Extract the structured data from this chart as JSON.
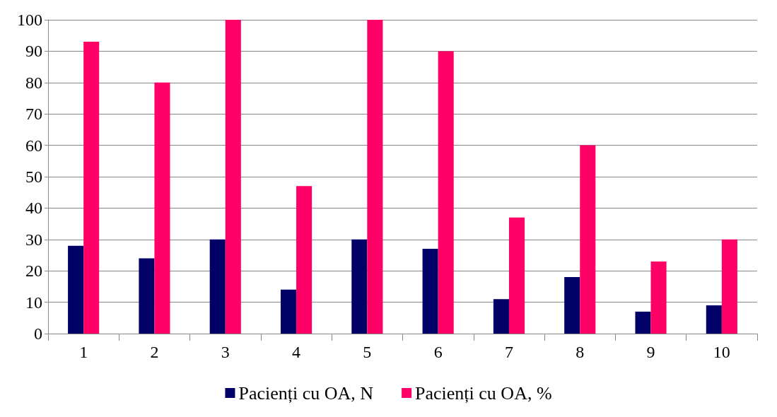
{
  "chart_data": {
    "type": "bar",
    "categories": [
      "1",
      "2",
      "3",
      "4",
      "5",
      "6",
      "7",
      "8",
      "9",
      "10"
    ],
    "series": [
      {
        "name": "Pacienți cu OA, N",
        "color": "#000066",
        "values": [
          28,
          24,
          30,
          14,
          30,
          27,
          11,
          18,
          7,
          9
        ]
      },
      {
        "name": "Pacienți cu OA, %",
        "color": "#ff0066",
        "values": [
          93,
          80,
          100,
          47,
          100,
          90,
          37,
          60,
          23,
          30
        ]
      }
    ],
    "ylim": [
      0,
      100
    ],
    "yticks": [
      0,
      10,
      20,
      30,
      40,
      50,
      60,
      70,
      80,
      90,
      100
    ],
    "grid": "y",
    "legend": "bottom"
  }
}
